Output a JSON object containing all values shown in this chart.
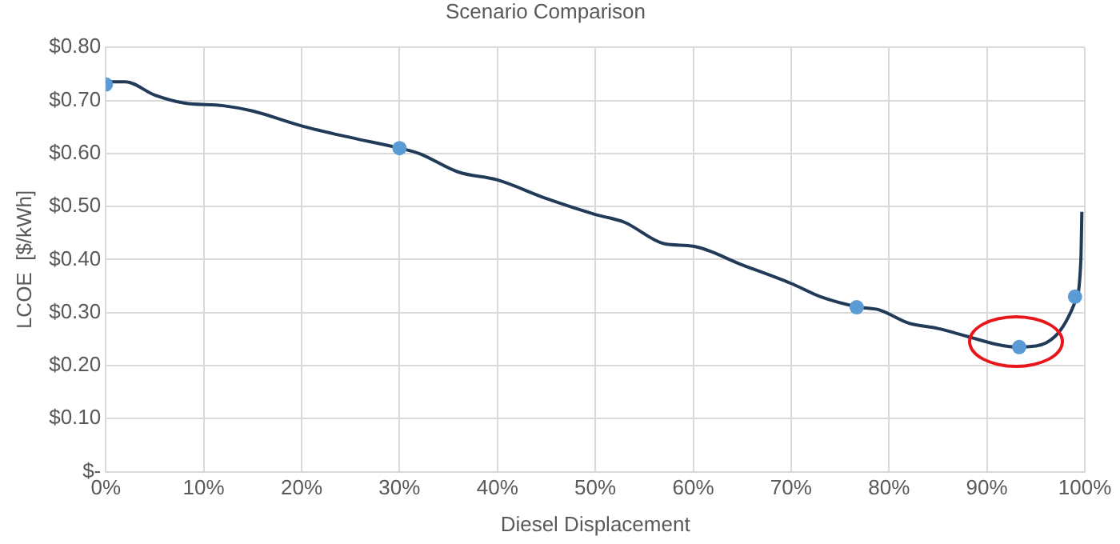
{
  "chart_data": {
    "type": "line",
    "title": "Scenario Comparison",
    "xlabel": "Diesel Displacement",
    "ylabel": "LCOE  [$/kWh]",
    "xlim": [
      0,
      100
    ],
    "xticks": [
      {
        "value": 0,
        "label": "0%"
      },
      {
        "value": 10,
        "label": "10%"
      },
      {
        "value": 20,
        "label": "20%"
      },
      {
        "value": 30,
        "label": "30%"
      },
      {
        "value": 40,
        "label": "40%"
      },
      {
        "value": 50,
        "label": "50%"
      },
      {
        "value": 60,
        "label": "60%"
      },
      {
        "value": 70,
        "label": "70%"
      },
      {
        "value": 80,
        "label": "80%"
      },
      {
        "value": 90,
        "label": "90%"
      },
      {
        "value": 100,
        "label": "100%"
      }
    ],
    "ylim": [
      0,
      0.8
    ],
    "yticks": [
      {
        "value": 0,
        "label": "$-"
      },
      {
        "value": 0.1,
        "label": "$0.10"
      },
      {
        "value": 0.2,
        "label": "$0.20"
      },
      {
        "value": 0.3,
        "label": "$0.30"
      },
      {
        "value": 0.4,
        "label": "$0.40"
      },
      {
        "value": 0.5,
        "label": "$0.50"
      },
      {
        "value": 0.6,
        "label": "$0.60"
      },
      {
        "value": 0.7,
        "label": "$0.70"
      },
      {
        "value": 0.8,
        "label": "$0.80"
      }
    ],
    "grid": true,
    "legend": false,
    "line_style": "solid",
    "series": [
      {
        "marker": "none",
        "color": "#203a58",
        "x": [
          0,
          2,
          5,
          8,
          12,
          15,
          20,
          25,
          30,
          32,
          36,
          40,
          45,
          50,
          53,
          57,
          60,
          65,
          70,
          73,
          77,
          79,
          82,
          85,
          88,
          91,
          93,
          95,
          99,
          99.6,
          99.7
        ],
        "values": [
          0.735,
          0.735,
          0.71,
          0.695,
          0.69,
          0.68,
          0.652,
          0.63,
          0.61,
          0.6,
          0.565,
          0.55,
          0.515,
          0.485,
          0.47,
          0.43,
          0.425,
          0.39,
          0.355,
          0.33,
          0.31,
          0.305,
          0.28,
          0.27,
          0.255,
          0.24,
          0.235,
          0.237,
          0.32,
          0.4,
          0.49
        ]
      },
      {
        "type": "scatter",
        "marker": "circle",
        "color": "#5b9bd5",
        "x": [
          0,
          30,
          76.7,
          93.3,
          99
        ],
        "values": [
          0.73,
          0.61,
          0.31,
          0.235,
          0.33
        ]
      }
    ]
  }
}
